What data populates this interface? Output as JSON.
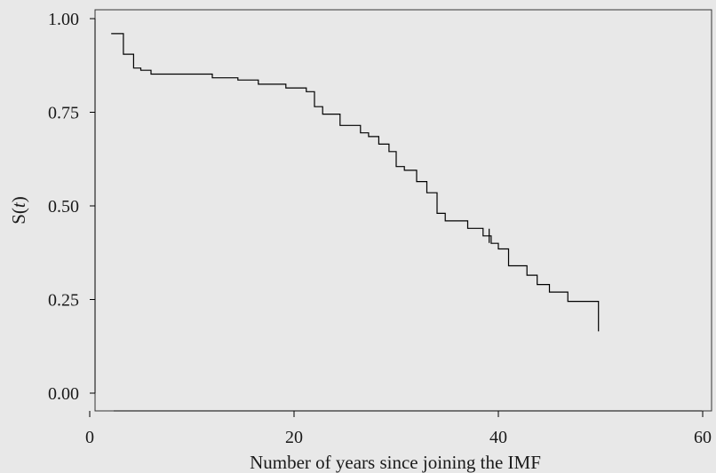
{
  "chart_data": {
    "type": "line",
    "step": true,
    "title": "",
    "xlabel": "Number of years since joining the IMF",
    "ylabel_parts": [
      "S(",
      "t",
      ")"
    ],
    "xlim": [
      0,
      60
    ],
    "ylim": [
      0,
      1
    ],
    "x_ticks": [
      0,
      20,
      40,
      60
    ],
    "x_tick_labels": [
      "0",
      "20",
      "40",
      "60"
    ],
    "y_ticks": [
      0,
      0.25,
      0.5,
      0.75,
      1.0
    ],
    "y_tick_labels": [
      "0.00",
      "0.25",
      "0.50",
      "0.75",
      "1.00"
    ],
    "grid": false,
    "line_color": "#000000",
    "background_color": "#e8e8e8",
    "series": [
      {
        "x": [
          3.3,
          4.3,
          5.0,
          6.0,
          12.0,
          14.5,
          16.5,
          19.2,
          21.2,
          22.0,
          22.8,
          23.5,
          24.5,
          26.5,
          27.3,
          28.3,
          29.3,
          30.0,
          30.8,
          32.0,
          33.0,
          34.0,
          34.8,
          35.3,
          37.0,
          38.5,
          39.3,
          40.0,
          41.0,
          42.8,
          43.8,
          45.0,
          46.8,
          47.8,
          49.8,
          49.8
        ],
        "y": [
          0.96,
          0.905,
          0.868,
          0.862,
          0.852,
          0.842,
          0.836,
          0.825,
          0.815,
          0.805,
          0.765,
          0.745,
          0.745,
          0.715,
          0.695,
          0.685,
          0.665,
          0.645,
          0.605,
          0.595,
          0.565,
          0.535,
          0.48,
          0.46,
          0.46,
          0.44,
          0.42,
          0.4,
          0.385,
          0.34,
          0.315,
          0.29,
          0.27,
          0.245,
          0.245,
          0.165
        ]
      }
    ],
    "censor_marks": [
      {
        "x": 39.1,
        "y": 0.42
      }
    ]
  }
}
